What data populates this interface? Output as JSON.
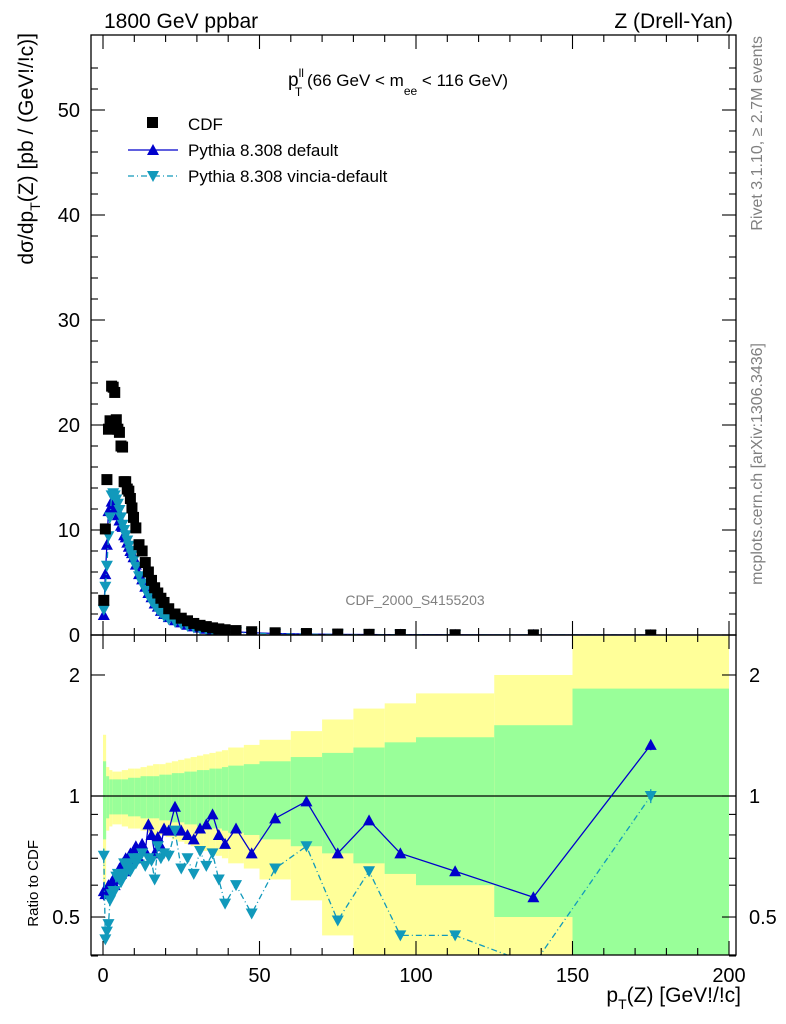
{
  "header": {
    "left": "1800 GeV ppbar",
    "right": "Z (Drell-Yan)"
  },
  "side_texts": {
    "rivet": "Rivet 3.1.10, ≥ 2.7M events",
    "mcplots": "mcplots.cern.ch [arXiv:1306.3436]"
  },
  "analysis_id": "CDF_2000_S4155203",
  "colors": {
    "data": "#000000",
    "pythia_default": "#0000cc",
    "vincia": "#1199bb",
    "band_outer": "#ffff99",
    "band_inner": "#99ff99"
  },
  "chart_data": [
    {
      "type": "scatter",
      "panel": "main",
      "title_main": "p",
      "title_sup": "ll",
      "title_sub": "T",
      "title_rest1": " (66 GeV < m",
      "title_sub2": "ee",
      "title_rest2": " < 116 GeV)",
      "ylabel": "dσ/dp",
      "ylabel_sub": "T",
      "ylabel_rest": "(Z) [pb / (GeV!/!c)]",
      "ylim": [
        0,
        57
      ],
      "yticks": [
        "0",
        "10",
        "20",
        "30",
        "40",
        "50"
      ],
      "xlim": [
        -3,
        206
      ],
      "legend_position": "top-left",
      "series": [
        {
          "name": "CDF",
          "marker": "square",
          "x": [
            0.25,
            0.75,
            1.25,
            1.75,
            2.25,
            2.75,
            3.25,
            3.75,
            4.25,
            4.75,
            5.25,
            5.75,
            6.25,
            6.75,
            7.25,
            7.75,
            8.25,
            8.75,
            9.25,
            9.75,
            10.5,
            11.5,
            12.5,
            13.5,
            14.5,
            15.5,
            16.5,
            17.5,
            18.5,
            19.5,
            21,
            23,
            25,
            27,
            29,
            31,
            33,
            35,
            37,
            39,
            42.5,
            47.5,
            55,
            65,
            75,
            85,
            95,
            112.5,
            137.5,
            175
          ],
          "y": [
            3.3,
            10.1,
            14.8,
            19.6,
            20.4,
            23.7,
            23.6,
            23.1,
            20.5,
            19.6,
            19.3,
            18.0,
            17.9,
            14.6,
            14.6,
            13.9,
            13.7,
            13.0,
            12.1,
            11.2,
            10.2,
            8.6,
            8.0,
            6.9,
            6.0,
            5.2,
            4.5,
            4.0,
            3.5,
            3.1,
            2.5,
            2.0,
            1.6,
            1.35,
            1.1,
            0.92,
            0.8,
            0.68,
            0.58,
            0.5,
            0.42,
            0.31,
            0.21,
            0.14,
            0.09,
            0.065,
            0.045,
            0.025,
            0.012,
            0.003
          ]
        },
        {
          "name": "Pythia 8.308 default",
          "marker": "triangle-up",
          "line": "solid",
          "x": [
            0.25,
            0.75,
            1.25,
            1.75,
            2.25,
            2.75,
            3.25,
            3.75,
            4.25,
            4.75,
            5.25,
            5.75,
            6.25,
            6.75,
            7.25,
            7.75,
            8.25,
            8.75,
            9.25,
            9.75,
            10.5,
            11.5,
            12.5,
            13.5,
            14.5,
            15.5,
            16.5,
            17.5,
            18.5,
            19.5,
            21,
            23,
            25,
            27,
            29,
            31,
            33,
            35,
            37,
            39,
            42.5,
            47.5,
            55,
            65,
            75,
            85,
            95,
            112.5,
            137.5,
            175
          ],
          "y": [
            1.9,
            5.8,
            8.6,
            11.8,
            12.0,
            12.7,
            12.8,
            12.4,
            12.1,
            11.4,
            10.9,
            10.4,
            10.3,
            9.5,
            9.3,
            8.8,
            8.4,
            8.0,
            7.8,
            7.4,
            6.7,
            5.8,
            5.3,
            4.6,
            4.0,
            3.6,
            3.0,
            2.7,
            2.3,
            2.0,
            1.7,
            1.4,
            1.2,
            0.98,
            0.82,
            0.7,
            0.6,
            0.5,
            0.42,
            0.36,
            0.3,
            0.22,
            0.14,
            0.09,
            0.06,
            0.045,
            0.03,
            0.017,
            0.007,
            0.004
          ]
        },
        {
          "name": "Pythia 8.308 vincia-default",
          "marker": "triangle-down",
          "line": "dashdot",
          "x": [
            0.25,
            0.75,
            1.25,
            1.75,
            2.25,
            2.75,
            3.25,
            3.75,
            4.25,
            4.75,
            5.25,
            5.75,
            6.25,
            6.75,
            7.25,
            7.75,
            8.25,
            8.75,
            9.25,
            9.75,
            10.5,
            11.5,
            12.5,
            13.5,
            14.5,
            15.5,
            16.5,
            17.5,
            18.5,
            19.5,
            21,
            23,
            25,
            27,
            29,
            31,
            33,
            35,
            37,
            39,
            42.5,
            47.5,
            55,
            65,
            75,
            85,
            95,
            112.5,
            137.5,
            175
          ],
          "y": [
            2.4,
            4.6,
            6.6,
            9.4,
            11.2,
            13.3,
            13.5,
            13.3,
            12.9,
            12.5,
            11.9,
            11.2,
            10.5,
            10.0,
            9.5,
            9.0,
            8.5,
            8.0,
            7.6,
            7.1,
            6.5,
            5.6,
            4.9,
            4.3,
            3.7,
            3.2,
            2.8,
            2.4,
            2.1,
            1.8,
            1.5,
            1.25,
            1.05,
            0.86,
            0.72,
            0.6,
            0.5,
            0.42,
            0.35,
            0.29,
            0.24,
            0.17,
            0.11,
            0.07,
            0.045,
            0.03,
            0.02,
            0.011,
            0.005,
            0.003
          ]
        }
      ]
    },
    {
      "type": "line",
      "panel": "ratio",
      "ylabel": "Ratio to CDF",
      "xlabel": "p",
      "xlabel_sub": "T",
      "xlabel_rest": "(Z) [GeV!/!c]",
      "xlim": [
        -3,
        206
      ],
      "ylim": [
        0.35,
        2.25
      ],
      "xticks": [
        "0",
        "50",
        "100",
        "150",
        "200"
      ],
      "yticks": [
        "0.5",
        "1",
        "2"
      ],
      "reference_line": 1,
      "bands": {
        "edges": [
          0,
          1,
          2,
          3,
          4,
          6,
          8,
          10,
          12,
          14,
          16,
          18,
          20,
          22,
          24,
          26,
          28,
          30,
          32,
          34,
          36,
          38,
          40,
          45,
          50,
          60,
          70,
          80,
          90,
          100,
          125,
          150,
          200
        ],
        "inner": [
          0.22,
          0.12,
          0.1,
          0.1,
          0.1,
          0.1,
          0.11,
          0.11,
          0.12,
          0.12,
          0.12,
          0.13,
          0.13,
          0.14,
          0.14,
          0.15,
          0.15,
          0.16,
          0.16,
          0.17,
          0.17,
          0.18,
          0.19,
          0.2,
          0.22,
          0.25,
          0.28,
          0.32,
          0.36,
          0.4,
          0.5,
          0.85
        ],
        "outer": [
          0.42,
          0.18,
          0.16,
          0.15,
          0.15,
          0.16,
          0.17,
          0.17,
          0.18,
          0.19,
          0.2,
          0.2,
          0.21,
          0.22,
          0.23,
          0.24,
          0.25,
          0.26,
          0.27,
          0.28,
          0.29,
          0.3,
          0.32,
          0.34,
          0.38,
          0.45,
          0.55,
          0.65,
          0.7,
          0.8,
          1.0,
          1.5
        ]
      },
      "series": [
        {
          "name": "Pythia 8.308 default",
          "x": [
            0.25,
            0.75,
            1.25,
            1.75,
            2.25,
            2.75,
            3.25,
            3.75,
            4.25,
            4.75,
            5.25,
            5.75,
            6.25,
            6.75,
            7.25,
            7.75,
            8.25,
            8.75,
            9.25,
            9.75,
            10.5,
            11.5,
            12.5,
            13.5,
            14.5,
            15.5,
            16.5,
            17.5,
            18.5,
            19.5,
            21,
            23,
            25,
            27,
            29,
            31,
            33,
            35,
            37,
            39,
            42.5,
            47.5,
            55,
            65,
            75,
            85,
            95,
            112.5,
            137.5,
            175
          ],
          "y": [
            0.58,
            0.57,
            0.58,
            0.6,
            0.59,
            0.61,
            0.62,
            0.6,
            0.63,
            0.64,
            0.66,
            0.64,
            0.68,
            0.65,
            0.7,
            0.67,
            0.69,
            0.72,
            0.71,
            0.73,
            0.75,
            0.7,
            0.76,
            0.73,
            0.85,
            0.8,
            0.72,
            0.79,
            0.75,
            0.83,
            0.82,
            0.94,
            0.82,
            0.8,
            0.78,
            0.83,
            0.85,
            0.9,
            0.8,
            0.76,
            0.83,
            0.72,
            0.88,
            0.97,
            0.72,
            0.87,
            0.72,
            0.65,
            0.56,
            1.34
          ],
          "err": [
            0.03,
            0.02,
            0.02,
            0.02,
            0.02,
            0.02,
            0.02,
            0.02,
            0.02,
            0.02,
            0.02,
            0.02,
            0.02,
            0.02,
            0.02,
            0.02,
            0.02,
            0.02,
            0.02,
            0.02,
            0.02,
            0.02,
            0.02,
            0.02,
            0.02,
            0.02,
            0.02,
            0.02,
            0.02,
            0.02,
            0.02,
            0.02,
            0.02,
            0.02,
            0.02,
            0.02,
            0.02,
            0.02,
            0.02,
            0.02,
            0.02,
            0.02,
            0.02,
            0.02,
            0.02,
            0.02,
            0.02,
            0.02,
            0.02,
            0.04
          ]
        },
        {
          "name": "Pythia 8.308 vincia-default",
          "x": [
            0.25,
            0.75,
            1.25,
            1.75,
            2.25,
            2.75,
            3.25,
            3.75,
            4.25,
            4.75,
            5.25,
            5.75,
            6.25,
            6.75,
            7.25,
            7.75,
            8.25,
            8.75,
            9.25,
            9.75,
            10.5,
            11.5,
            12.5,
            13.5,
            14.5,
            15.5,
            16.5,
            17.5,
            18.5,
            19.5,
            21,
            23,
            25,
            27,
            29,
            31,
            33,
            35,
            37,
            39,
            42.5,
            47.5,
            55,
            65,
            75,
            85,
            95,
            112.5,
            137.5,
            175
          ],
          "y": [
            0.71,
            0.44,
            0.46,
            0.48,
            0.55,
            0.57,
            0.58,
            0.58,
            0.63,
            0.64,
            0.62,
            0.61,
            0.63,
            0.68,
            0.64,
            0.66,
            0.68,
            0.65,
            0.66,
            0.7,
            0.68,
            0.7,
            0.72,
            0.67,
            0.7,
            0.69,
            0.62,
            0.75,
            0.7,
            0.72,
            0.71,
            0.82,
            0.66,
            0.7,
            0.64,
            0.73,
            0.67,
            0.72,
            0.62,
            0.54,
            0.6,
            0.51,
            0.66,
            0.75,
            0.49,
            0.65,
            0.45,
            0.45,
            0.38,
            1.0
          ],
          "err": [
            0.03,
            0.02,
            0.02,
            0.02,
            0.02,
            0.02,
            0.02,
            0.02,
            0.02,
            0.02,
            0.02,
            0.02,
            0.02,
            0.02,
            0.02,
            0.02,
            0.02,
            0.02,
            0.02,
            0.02,
            0.02,
            0.02,
            0.02,
            0.02,
            0.02,
            0.02,
            0.02,
            0.02,
            0.02,
            0.02,
            0.02,
            0.02,
            0.02,
            0.02,
            0.02,
            0.02,
            0.02,
            0.02,
            0.02,
            0.02,
            0.02,
            0.02,
            0.02,
            0.02,
            0.02,
            0.02,
            0.02,
            0.02,
            0.02,
            0.04
          ]
        }
      ]
    }
  ]
}
